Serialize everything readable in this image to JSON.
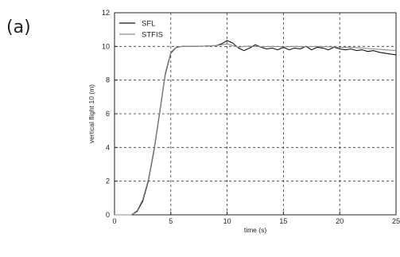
{
  "panel_label": "(a)",
  "chart_data": {
    "type": "line",
    "title": "",
    "xlabel": "time (s)",
    "ylabel": "vertical flight 10 (m)",
    "xlim": [
      0,
      25
    ],
    "ylim": [
      0,
      12
    ],
    "xticks": [
      0,
      5,
      10,
      15,
      20,
      25
    ],
    "yticks": [
      0,
      2,
      4,
      6,
      8,
      10,
      12
    ],
    "grid": true,
    "legend_position": "top-left",
    "series": [
      {
        "name": "SFL",
        "color": "#111111",
        "x": [
          0,
          1.5,
          2.0,
          2.5,
          3.0,
          3.5,
          4.0,
          4.5,
          5.0,
          5.5,
          6.0,
          7.0,
          8.0,
          9.0,
          9.5,
          10.0,
          10.5,
          11.0,
          11.5,
          12.0,
          12.5,
          13.0,
          13.5,
          14.0,
          14.5,
          15.0,
          15.5,
          16.0,
          16.5,
          17.0,
          17.5,
          18.0,
          18.5,
          19.0,
          19.5,
          20.0,
          20.5,
          21.0,
          21.5,
          22.0,
          22.5,
          23.0,
          23.5,
          24.0,
          24.5,
          25.0
        ],
        "y": [
          0,
          0,
          0.2,
          0.8,
          2.0,
          3.8,
          6.0,
          8.3,
          9.6,
          9.95,
          10.0,
          10.0,
          10.02,
          10.05,
          10.15,
          10.35,
          10.2,
          9.9,
          9.75,
          9.9,
          10.1,
          9.95,
          9.85,
          9.9,
          9.8,
          9.95,
          9.8,
          9.9,
          9.85,
          10.0,
          9.8,
          9.95,
          9.9,
          9.8,
          9.95,
          9.85,
          9.8,
          9.85,
          9.75,
          9.8,
          9.7,
          9.75,
          9.65,
          9.6,
          9.55,
          9.5
        ]
      },
      {
        "name": "STFIS",
        "color": "#8c8c8c",
        "x": [
          0,
          1.5,
          2.0,
          2.5,
          3.0,
          3.5,
          4.0,
          4.5,
          5.0,
          5.5,
          6.0,
          7.0,
          8.0,
          9.0,
          9.5,
          10.0,
          10.5,
          11.0,
          11.5,
          12.0,
          13.0,
          14.0,
          15.0,
          16.0,
          17.0,
          18.0,
          19.0,
          20.0,
          21.0,
          22.0,
          23.0,
          24.0,
          25.0
        ],
        "y": [
          0,
          0,
          0.25,
          0.9,
          2.1,
          3.9,
          6.1,
          8.4,
          9.65,
          9.97,
          10.0,
          10.0,
          10.02,
          10.05,
          10.1,
          10.15,
          10.05,
          9.95,
          10.0,
          10.02,
          9.98,
          10.0,
          9.98,
          10.0,
          9.98,
          10.0,
          9.98,
          9.95,
          9.95,
          9.9,
          9.85,
          9.8,
          9.75
        ]
      }
    ]
  }
}
